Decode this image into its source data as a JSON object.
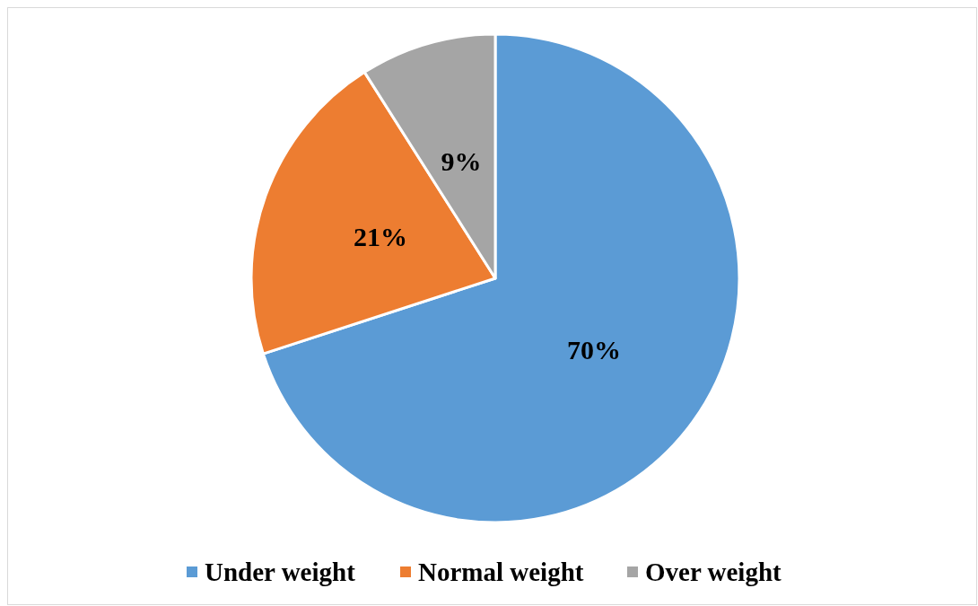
{
  "chart_data": {
    "type": "pie",
    "categories": [
      "Under weight",
      "Normal weight",
      "Over weight"
    ],
    "values": [
      70,
      21,
      9
    ],
    "colors": [
      "#5b9bd5",
      "#ed7d31",
      "#a5a5a5"
    ],
    "value_labels": [
      "70%",
      "21%",
      "9%"
    ],
    "legend": "bottom"
  }
}
